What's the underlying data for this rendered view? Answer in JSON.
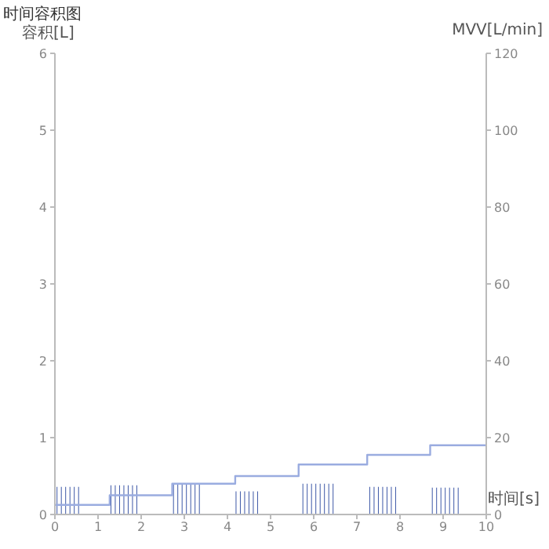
{
  "chart_data": {
    "type": "bar",
    "title": "时间容积图",
    "xlabel": "时间[s]",
    "ylabel": "容积[L]",
    "y2label": "MVV[L/min]",
    "series": [
      {
        "color": "#3b56a6",
        "x": [
          0.05,
          0.15,
          0.25,
          0.35,
          0.45,
          0.55,
          1.3,
          1.4,
          1.5,
          1.6,
          1.7,
          1.8,
          1.9,
          2.75,
          2.85,
          2.95,
          3.05,
          3.15,
          3.25,
          3.35,
          4.2,
          4.3,
          4.4,
          4.5,
          4.6,
          4.7,
          5.75,
          5.85,
          5.95,
          6.05,
          6.15,
          6.25,
          6.35,
          6.45,
          7.3,
          7.4,
          7.5,
          7.6,
          7.7,
          7.8,
          7.9,
          8.75,
          8.85,
          8.95,
          9.05,
          9.15,
          9.25,
          9.35
        ],
        "values": [
          0.36,
          0.36,
          0.36,
          0.36,
          0.36,
          0.36,
          0.38,
          0.38,
          0.38,
          0.38,
          0.38,
          0.38,
          0.38,
          0.39,
          0.39,
          0.39,
          0.39,
          0.39,
          0.39,
          0.39,
          0.3,
          0.3,
          0.3,
          0.3,
          0.3,
          0.3,
          0.4,
          0.4,
          0.4,
          0.4,
          0.4,
          0.4,
          0.4,
          0.4,
          0.36,
          0.36,
          0.36,
          0.36,
          0.36,
          0.36,
          0.36,
          0.35,
          0.35,
          0.35,
          0.35,
          0.35,
          0.35,
          0.35
        ]
      },
      {
        "type": "step",
        "axis": "y2",
        "color": "#9aace0",
        "x": [
          0,
          1.27,
          2.72,
          4.18,
          5.65,
          7.24,
          8.7,
          10
        ],
        "values": [
          2.5,
          5,
          8,
          10,
          13,
          15.5,
          18,
          18
        ]
      }
    ],
    "xlim": [
      0,
      10
    ],
    "xticks": [
      0,
      1,
      2,
      3,
      4,
      5,
      6,
      7,
      8,
      9,
      10
    ],
    "ylim": [
      0,
      6
    ],
    "yticks": [
      0,
      1,
      2,
      3,
      4,
      5,
      6
    ],
    "y2lim": [
      0,
      120
    ],
    "y2ticks": [
      0,
      20,
      40,
      60,
      80,
      100,
      120
    ],
    "grid": false,
    "legend": false
  }
}
